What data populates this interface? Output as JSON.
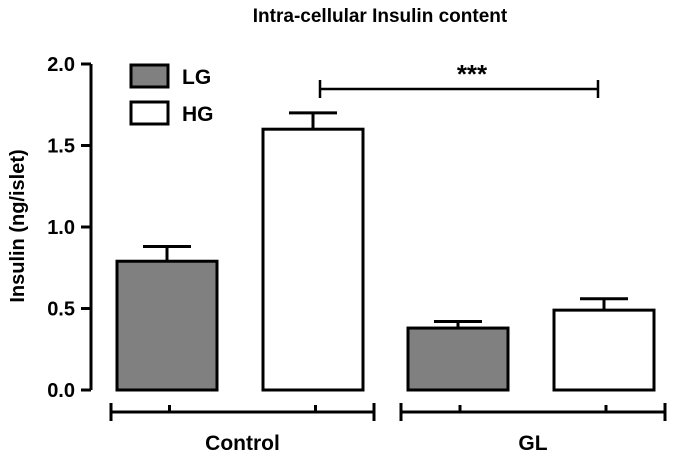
{
  "chart_data": {
    "type": "bar",
    "title": "Intra-cellular Insulin content",
    "xlabel": "",
    "ylabel": "Insulin (ng/islet)",
    "ylim": [
      0,
      2.0
    ],
    "yticks": [
      "0.0",
      "0.5",
      "1.0",
      "1.5",
      "2.0"
    ],
    "categories": [
      "Control",
      "GL"
    ],
    "series": [
      {
        "name": "LG",
        "fill": "#808080",
        "values": [
          0.79,
          0.38
        ],
        "errors": [
          0.09,
          0.04
        ]
      },
      {
        "name": "HG",
        "fill": "#ffffff",
        "values": [
          1.6,
          0.49
        ],
        "errors": [
          0.1,
          0.07
        ]
      }
    ],
    "annotations": [
      {
        "text": "***"
      }
    ],
    "legend": "top-left",
    "grid": false
  }
}
